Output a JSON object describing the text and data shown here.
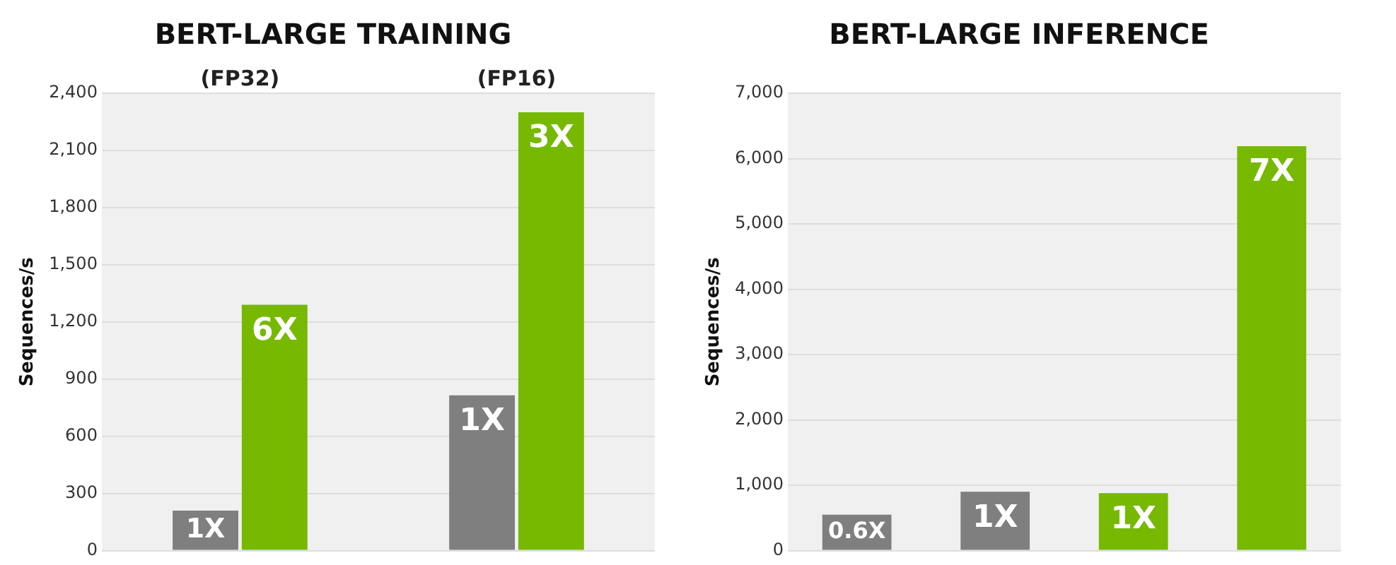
{
  "chart_data": [
    {
      "type": "bar",
      "title": "BERT-LARGE TRAINING",
      "ylabel": "Sequences/s",
      "categories": [
        null,
        null
      ],
      "series": [
        {
          "color": "#7f7f7f",
          "values": [
            210,
            815
          ]
        },
        {
          "color": "#76b900",
          "values": [
            1290,
            2300
          ]
        }
      ],
      "annotations": [
        "(FP32)",
        "(FP16)",
        {
          "text": "1X",
          "y": 210
        },
        {
          "text": "1X",
          "y": 815
        },
        {
          "text": "6X",
          "y": 1290
        },
        {
          "text": "3X",
          "y": 2300
        }
      ],
      "ylim": [
        0,
        2400
      ],
      "yticks": [
        0,
        300,
        600,
        900,
        {
          "value": 1200,
          "label": "1,200"
        },
        {
          "value": 1500,
          "label": "1,500"
        },
        {
          "value": 1800,
          "label": "1,800"
        },
        {
          "value": 2100,
          "label": "2,100"
        },
        {
          "value": 2400,
          "label": "2,400"
        }
      ],
      "grid": "y",
      "legend": false
    },
    {
      "type": "bar",
      "title": "BERT-LARGE INFERENCE",
      "ylabel": "Sequences/s",
      "categories": [
        null,
        null,
        null,
        null
      ],
      "values": [
        550,
        900,
        880,
        6190
      ],
      "colors": [
        "#7f7f7f",
        "#7f7f7f",
        "#76b900",
        "#76b900"
      ],
      "annotations": [
        {
          "text": "0.6X",
          "y": 550
        },
        {
          "text": "1X",
          "y": 900
        },
        {
          "text": "1X",
          "y": 880
        },
        {
          "text": "7X",
          "y": 6190
        }
      ],
      "ylim": [
        0,
        7000
      ],
      "yticks": [
        0,
        {
          "value": 1000,
          "label": "1,000"
        },
        {
          "value": 2000,
          "label": "2,000"
        },
        {
          "value": 3000,
          "label": "3,000"
        },
        {
          "value": 4000,
          "label": "4,000"
        },
        {
          "value": 5000,
          "label": "5,000"
        },
        {
          "value": 6000,
          "label": "6,000"
        },
        {
          "value": 7000,
          "label": "7,000"
        }
      ],
      "grid": "y",
      "legend": false
    }
  ]
}
